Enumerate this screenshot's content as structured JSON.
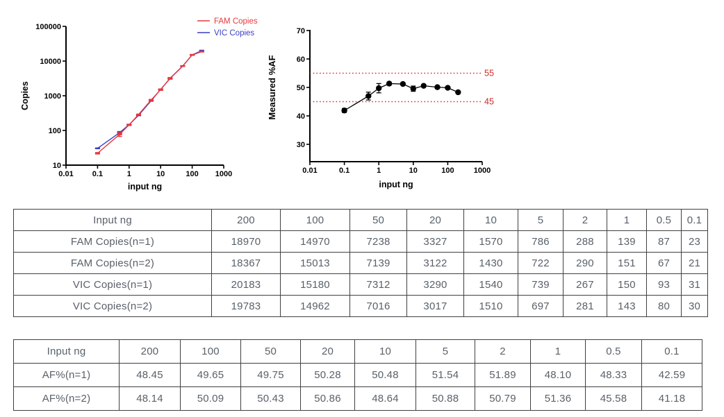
{
  "colors": {
    "fam_red": "#e8383c",
    "vic_blue": "#3a3fc4",
    "reference_red": "#d02724",
    "axis_black": "#000000",
    "table_text": "#59616a",
    "table_border": "#3f3f3f"
  },
  "chart_data": [
    {
      "name": "copies-standard-curve",
      "type": "line",
      "title": "",
      "xlabel": "input ng",
      "ylabel": "Copies",
      "xscale": "log",
      "yscale": "log",
      "xlim": [
        0.01,
        1000
      ],
      "ylim": [
        10,
        100000
      ],
      "xticks": [
        "0.01",
        "0.1",
        "1",
        "10",
        "100",
        "1000"
      ],
      "yticks": [
        "10",
        "100",
        "1000",
        "10000",
        "100000"
      ],
      "grid": false,
      "legend_position": "top-right",
      "x": [
        0.1,
        0.5,
        1,
        2,
        5,
        10,
        20,
        50,
        100,
        200
      ],
      "series": [
        {
          "name": "VIC Copies",
          "color": "#3a3fc4",
          "values": [
            30.5,
            86.5,
            146.5,
            274,
            718,
            1525,
            3153.5,
            7164,
            15071,
            19983
          ],
          "err": [
            0.5,
            6.5,
            3.5,
            7,
            21,
            15,
            136.5,
            148,
            109,
            200
          ]
        },
        {
          "name": "FAM Copies",
          "color": "#e8383c",
          "values": [
            22,
            77,
            145,
            289,
            754,
            1500,
            3224.5,
            7188.5,
            14991.5,
            18668.5
          ],
          "err": [
            1,
            10,
            6,
            1,
            32,
            70,
            102.5,
            49.5,
            21.5,
            301.5
          ]
        }
      ],
      "legend": [
        {
          "label": "FAM Copies",
          "color": "#e8383c"
        },
        {
          "label": "VIC Copies",
          "color": "#3a3fc4"
        }
      ]
    },
    {
      "name": "measured-af",
      "type": "scatter-line",
      "title": "",
      "xlabel": "input ng",
      "ylabel": "Measured %AF",
      "xscale": "log",
      "yscale": "linear",
      "xlim": [
        0.01,
        1000
      ],
      "ylim": [
        25,
        70
      ],
      "xticks": [
        "0.01",
        "0.1",
        "1",
        "10",
        "100",
        "1000"
      ],
      "yticks": [
        "30",
        "40",
        "50",
        "60",
        "70"
      ],
      "grid": false,
      "x": [
        0.1,
        0.5,
        1,
        2,
        5,
        10,
        20,
        50,
        100,
        200
      ],
      "series": [
        {
          "name": "Measured %AF",
          "color": "#000000",
          "values": [
            41.89,
            46.96,
            49.73,
            51.34,
            51.21,
            49.56,
            50.57,
            50.09,
            49.87,
            48.3
          ],
          "err": [
            0.71,
            1.38,
            1.63,
            0.55,
            0.33,
            0.92,
            0.29,
            0.34,
            0.22,
            0.16
          ]
        }
      ],
      "reference_lines": [
        {
          "y": 55,
          "label": "55",
          "color": "#d02724"
        },
        {
          "y": 45,
          "label": "45",
          "color": "#d02724"
        }
      ]
    }
  ],
  "tables": [
    {
      "name": "copies-table",
      "header": [
        "Input ng",
        "200",
        "100",
        "50",
        "20",
        "10",
        "5",
        "2",
        "1",
        "0.5",
        "0.1"
      ],
      "rows": [
        [
          "FAM Copies(n=1)",
          "18970",
          "14970",
          "7238",
          "3327",
          "1570",
          "786",
          "288",
          "139",
          "87",
          "23"
        ],
        [
          "FAM Copies(n=2)",
          "18367",
          "15013",
          "7139",
          "3122",
          "1430",
          "722",
          "290",
          "151",
          "67",
          "21"
        ],
        [
          "VIC Copies(n=1)",
          "20183",
          "15180",
          "7312",
          "3290",
          "1540",
          "739",
          "267",
          "150",
          "93",
          "31"
        ],
        [
          "VIC Copies(n=2)",
          "19783",
          "14962",
          "7016",
          "3017",
          "1510",
          "697",
          "281",
          "143",
          "80",
          "30"
        ]
      ]
    },
    {
      "name": "af-percent-table",
      "header": [
        "Input ng",
        "200",
        "100",
        "50",
        "20",
        "10",
        "5",
        "2",
        "1",
        "0.5",
        "0.1"
      ],
      "rows": [
        [
          "AF%(n=1)",
          "48.45",
          "49.65",
          "49.75",
          "50.28",
          "50.48",
          "51.54",
          "51.89",
          "48.10",
          "48.33",
          "42.59"
        ],
        [
          "AF%(n=2)",
          "48.14",
          "50.09",
          "50.43",
          "50.86",
          "48.64",
          "50.88",
          "50.79",
          "51.36",
          "45.58",
          "41.18"
        ]
      ]
    }
  ]
}
